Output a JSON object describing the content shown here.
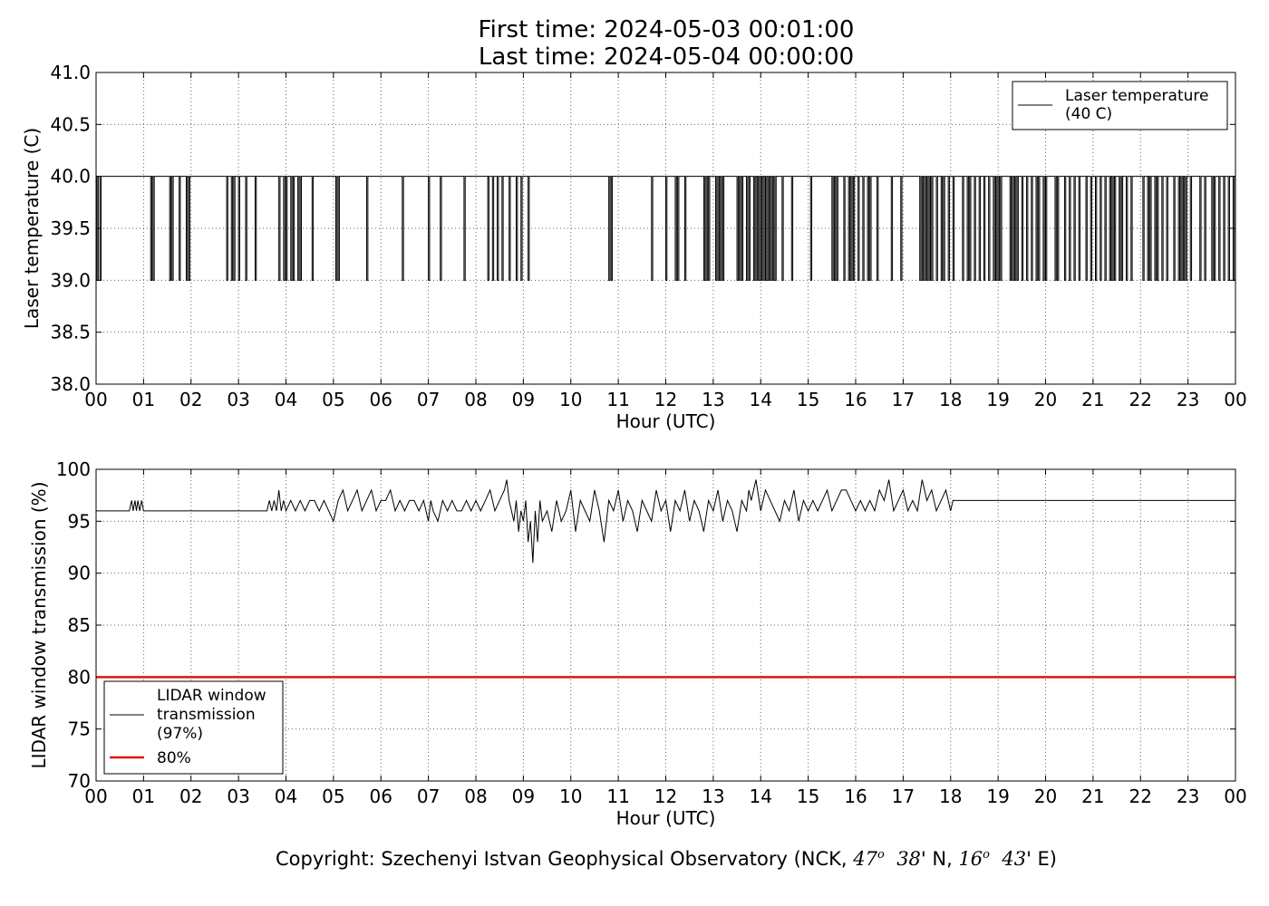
{
  "title": {
    "line1": "First time: 2024-05-03 00:01:00",
    "line2": "Last time: 2024-05-04 00:00:00"
  },
  "copyright": {
    "prefix": "Copyright: Szechenyi Istvan Geophysical Observatory (NCK, ",
    "lat_deg": "47",
    "lat_deg_sup": "o",
    "lat_min": "38",
    "lat_suffix": "' N, ",
    "lon_deg": "16",
    "lon_deg_sup": "o",
    "lon_min": "43",
    "lon_suffix": "' E)"
  },
  "chart_data": [
    {
      "type": "line",
      "xlabel": "Hour (UTC)",
      "ylabel": "Laser temperature (C)",
      "x_tick_labels": [
        "00",
        "01",
        "02",
        "03",
        "04",
        "05",
        "06",
        "07",
        "08",
        "09",
        "10",
        "11",
        "12",
        "13",
        "14",
        "15",
        "16",
        "17",
        "18",
        "19",
        "20",
        "21",
        "22",
        "23",
        "00"
      ],
      "y_tick_labels": [
        "38.0",
        "38.5",
        "39.0",
        "39.5",
        "40.0",
        "40.5",
        "41.0"
      ],
      "xlim": [
        0,
        24
      ],
      "ylim": [
        38.0,
        41.0
      ],
      "grid": true,
      "legend_position": "top-right",
      "series": [
        {
          "name": "Laser temperature\n(40 C)",
          "color": "#000000",
          "baseline": 40.0,
          "dip_value": 39.0,
          "dips_hours": [
            0.02,
            0.08,
            1.15,
            1.2,
            1.55,
            1.6,
            1.75,
            1.9,
            1.95,
            2.75,
            2.85,
            2.9,
            3.0,
            3.15,
            3.35,
            3.85,
            3.95,
            4.0,
            4.1,
            4.15,
            4.25,
            4.3,
            4.55,
            5.05,
            5.1,
            5.7,
            6.45,
            7.0,
            7.25,
            7.75,
            8.25,
            8.35,
            8.45,
            8.55,
            8.7,
            8.85,
            8.95,
            9.1,
            10.8,
            10.85,
            11.7,
            12.0,
            12.2,
            12.25,
            12.4,
            12.8,
            12.85,
            12.9,
            13.05,
            13.1,
            13.15,
            13.2,
            13.5,
            13.55,
            13.6,
            13.7,
            13.75,
            13.85,
            13.9,
            13.95,
            14.0,
            14.05,
            14.1,
            14.15,
            14.2,
            14.25,
            14.3,
            14.45,
            14.65,
            15.05,
            15.5,
            15.55,
            15.6,
            15.75,
            15.85,
            15.9,
            15.95,
            16.05,
            16.15,
            16.25,
            16.3,
            16.45,
            16.75,
            16.95,
            17.35,
            17.4,
            17.45,
            17.5,
            17.55,
            17.6,
            17.7,
            17.8,
            17.85,
            17.95,
            18.05,
            18.25,
            18.35,
            18.4,
            18.5,
            18.6,
            18.7,
            18.8,
            18.9,
            18.95,
            19.0,
            19.05,
            19.25,
            19.3,
            19.35,
            19.4,
            19.5,
            19.6,
            19.7,
            19.8,
            19.85,
            19.95,
            20.0,
            20.2,
            20.25,
            20.4,
            20.5,
            20.6,
            20.7,
            20.85,
            20.95,
            21.05,
            21.15,
            21.25,
            21.35,
            21.4,
            21.45,
            21.55,
            21.6,
            21.7,
            21.8,
            22.05,
            22.15,
            22.2,
            22.3,
            22.35,
            22.45,
            22.55,
            22.7,
            22.8,
            22.85,
            22.9,
            22.95,
            23.05,
            23.25,
            23.35,
            23.5,
            23.55,
            23.65,
            23.75,
            23.85,
            23.95
          ]
        }
      ]
    },
    {
      "type": "line",
      "xlabel": "Hour (UTC)",
      "ylabel": "LIDAR window transmission (%)",
      "x_tick_labels": [
        "00",
        "01",
        "02",
        "03",
        "04",
        "05",
        "06",
        "07",
        "08",
        "09",
        "10",
        "11",
        "12",
        "13",
        "14",
        "15",
        "16",
        "17",
        "18",
        "19",
        "20",
        "21",
        "22",
        "23",
        "00"
      ],
      "y_tick_labels": [
        "70",
        "75",
        "80",
        "85",
        "90",
        "95",
        "100"
      ],
      "xlim": [
        0,
        24
      ],
      "ylim": [
        70,
        100
      ],
      "grid": true,
      "legend_position": "bottom-left",
      "series": [
        {
          "name": "LIDAR window\ntransmission\n(97%)",
          "color": "#000000",
          "x": [
            0.0,
            0.7,
            0.75,
            0.78,
            0.82,
            0.85,
            0.88,
            0.92,
            0.96,
            1.0,
            3.6,
            3.65,
            3.7,
            3.75,
            3.8,
            3.85,
            3.9,
            3.95,
            4.0,
            4.1,
            4.2,
            4.3,
            4.4,
            4.5,
            4.6,
            4.7,
            4.8,
            4.9,
            5.0,
            5.1,
            5.2,
            5.3,
            5.4,
            5.5,
            5.6,
            5.7,
            5.8,
            5.9,
            6.0,
            6.1,
            6.2,
            6.3,
            6.4,
            6.5,
            6.6,
            6.7,
            6.8,
            6.9,
            7.0,
            7.05,
            7.1,
            7.2,
            7.3,
            7.4,
            7.5,
            7.6,
            7.7,
            7.8,
            7.9,
            8.0,
            8.1,
            8.2,
            8.3,
            8.4,
            8.5,
            8.6,
            8.65,
            8.7,
            8.75,
            8.8,
            8.85,
            8.9,
            8.95,
            9.0,
            9.05,
            9.1,
            9.15,
            9.2,
            9.25,
            9.3,
            9.35,
            9.4,
            9.5,
            9.6,
            9.7,
            9.8,
            9.9,
            10.0,
            10.1,
            10.2,
            10.3,
            10.4,
            10.5,
            10.6,
            10.7,
            10.8,
            10.9,
            11.0,
            11.1,
            11.2,
            11.3,
            11.4,
            11.5,
            11.6,
            11.7,
            11.8,
            11.9,
            12.0,
            12.1,
            12.2,
            12.3,
            12.4,
            12.5,
            12.6,
            12.7,
            12.8,
            12.9,
            13.0,
            13.1,
            13.2,
            13.3,
            13.4,
            13.5,
            13.6,
            13.7,
            13.75,
            13.8,
            13.9,
            14.0,
            14.1,
            14.2,
            14.3,
            14.4,
            14.5,
            14.6,
            14.7,
            14.8,
            14.9,
            15.0,
            15.1,
            15.2,
            15.3,
            15.4,
            15.5,
            15.6,
            15.7,
            15.8,
            15.9,
            16.0,
            16.1,
            16.2,
            16.3,
            16.4,
            16.5,
            16.6,
            16.7,
            16.8,
            16.9,
            17.0,
            17.1,
            17.2,
            17.3,
            17.4,
            17.5,
            17.6,
            17.7,
            17.8,
            17.9,
            18.0,
            18.05,
            18.1,
            24.0
          ],
          "values": [
            96,
            96,
            97,
            96,
            97,
            96,
            97,
            96,
            97,
            96,
            96,
            97,
            96,
            97,
            96,
            98,
            96,
            97,
            96,
            97,
            96,
            97,
            96,
            97,
            97,
            96,
            97,
            96,
            95,
            97,
            98,
            96,
            97,
            98,
            96,
            97,
            98,
            96,
            97,
            97,
            98,
            96,
            97,
            96,
            97,
            97,
            96,
            97,
            95,
            97,
            96,
            95,
            97,
            96,
            97,
            96,
            96,
            97,
            96,
            97,
            96,
            97,
            98,
            96,
            97,
            98,
            99,
            97,
            96,
            95,
            97,
            94,
            96,
            95,
            97,
            93,
            95,
            91,
            96,
            93,
            97,
            95,
            96,
            94,
            97,
            95,
            96,
            98,
            94,
            97,
            96,
            95,
            98,
            96,
            93,
            97,
            96,
            98,
            95,
            97,
            96,
            94,
            97,
            96,
            95,
            98,
            96,
            97,
            94,
            97,
            96,
            98,
            95,
            97,
            96,
            94,
            97,
            96,
            98,
            95,
            97,
            96,
            94,
            97,
            96,
            98,
            97,
            99,
            96,
            98,
            97,
            96,
            95,
            97,
            96,
            98,
            95,
            97,
            96,
            97,
            96,
            97,
            98,
            96,
            97,
            98,
            98,
            97,
            96,
            97,
            96,
            97,
            96,
            98,
            97,
            99,
            96,
            97,
            98,
            96,
            97,
            96,
            99,
            97,
            98,
            96,
            97,
            98,
            96,
            97,
            97,
            97
          ],
          "samples_hours": []
        },
        {
          "name": "80%",
          "color": "#e3140d",
          "values": [
            80,
            80
          ],
          "x": [
            0,
            24
          ]
        }
      ]
    }
  ]
}
